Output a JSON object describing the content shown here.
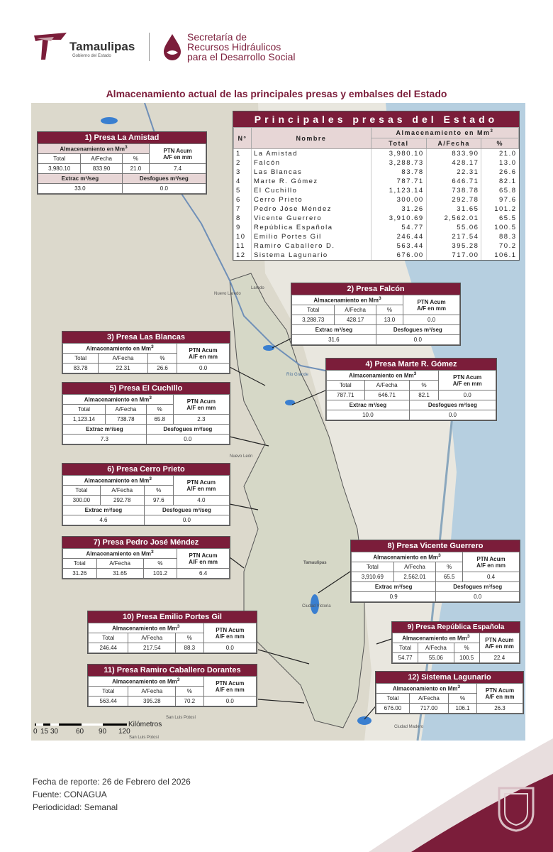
{
  "header": {
    "logo_name": "Tamaulipas",
    "logo_sub": "Gobierno del Estado",
    "agency_line1": "Secretaría de",
    "agency_line2": "Recursos Hidráulicos",
    "agency_line3": "para el Desarrollo Social"
  },
  "title": "Almacenamiento actual de las principales presas y embalses del Estado",
  "main_table": {
    "heading": "Principales presas del Estado",
    "col_no": "N°",
    "col_name": "Nombre",
    "col_storage": "Almacenamiento en Mm",
    "col_storage_sup": "3",
    "col_total": "Total",
    "col_date": "A/Fecha",
    "col_pct": "%",
    "rows": [
      {
        "n": "1",
        "name": "La Amistad",
        "total": "3,980.10",
        "fecha": "833.90",
        "pct": "21.0"
      },
      {
        "n": "2",
        "name": "Falcón",
        "total": "3,288.73",
        "fecha": "428.17",
        "pct": "13.0"
      },
      {
        "n": "3",
        "name": "Las Blancas",
        "total": "83.78",
        "fecha": "22.31",
        "pct": "26.6"
      },
      {
        "n": "4",
        "name": "Marte R. Gómez",
        "total": "787.71",
        "fecha": "646.71",
        "pct": "82.1"
      },
      {
        "n": "5",
        "name": "El Cuchillo",
        "total": "1,123.14",
        "fecha": "738.78",
        "pct": "65.8"
      },
      {
        "n": "6",
        "name": "Cerro Prieto",
        "total": "300.00",
        "fecha": "292.78",
        "pct": "97.6"
      },
      {
        "n": "7",
        "name": "Pedro Jóse Méndez",
        "total": "31.26",
        "fecha": "31.65",
        "pct": "101.2"
      },
      {
        "n": "8",
        "name": "Vicente Guerrero",
        "total": "3,910.69",
        "fecha": "2,562.01",
        "pct": "65.5"
      },
      {
        "n": "9",
        "name": "República Española",
        "total": "54.77",
        "fecha": "55.06",
        "pct": "100.5"
      },
      {
        "n": "10",
        "name": "Emilio Portes Gil",
        "total": "246.44",
        "fecha": "217.54",
        "pct": "88.3"
      },
      {
        "n": "11",
        "name": "Ramiro Caballero D.",
        "total": "563.44",
        "fecha": "395.28",
        "pct": "70.2"
      },
      {
        "n": "12",
        "name": "Sistema Lagunario",
        "total": "676.00",
        "fecha": "717.00",
        "pct": "106.1"
      }
    ]
  },
  "labels": {
    "storage": "Almacenamiento en Mm",
    "sup": "3",
    "ptn": "PTN Acum",
    "ptn2": "A/F en mm",
    "total": "Total",
    "fecha": "A/Fecha",
    "pct": "%",
    "extrac": "Extrac m³/seg",
    "desfogues": "Desfogues m³/seg"
  },
  "dams": {
    "amistad": {
      "title": "1) Presa La Amistad",
      "total": "3,980.10",
      "fecha": "833.90",
      "pct": "21.0",
      "ptn": "7.4",
      "extrac": "33.0",
      "desf": "0.0"
    },
    "falcon": {
      "title": "2) Presa Falcón",
      "total": "3,288.73",
      "fecha": "428.17",
      "pct": "13.0",
      "ptn": "0.0",
      "extrac": "31.6",
      "desf": "0.0"
    },
    "blancas": {
      "title": "3) Presa Las Blancas",
      "total": "83.78",
      "fecha": "22.31",
      "pct": "26.6",
      "ptn": "0.0"
    },
    "marte": {
      "title": "4) Presa Marte R. Gómez",
      "total": "787.71",
      "fecha": "646.71",
      "pct": "82.1",
      "ptn": "0.0",
      "extrac": "10.0",
      "desf": "0.0"
    },
    "cuchillo": {
      "title": "5) Presa El Cuchillo",
      "total": "1,123.14",
      "fecha": "738.78",
      "pct": "65.8",
      "ptn": "2.3",
      "extrac": "7.3",
      "desf": "0.0"
    },
    "cerro": {
      "title": "6) Presa Cerro Prieto",
      "total": "300.00",
      "fecha": "292.78",
      "pct": "97.6",
      "ptn": "4.0",
      "extrac": "4.6",
      "desf": "0.0"
    },
    "pedro": {
      "title": "7) Presa Pedro José Méndez",
      "total": "31.26",
      "fecha": "31.65",
      "pct": "101.2",
      "ptn": "6.4"
    },
    "vicente": {
      "title": "8) Presa Vicente Guerrero",
      "total": "3,910.69",
      "fecha": "2,562.01",
      "pct": "65.5",
      "ptn": "0.4",
      "extrac": "0.9",
      "desf": "0.0"
    },
    "republica": {
      "title": "9) Presa República Española",
      "total": "54.77",
      "fecha": "55.06",
      "pct": "100.5",
      "ptn": "22.4"
    },
    "emilio": {
      "title": "10) Presa Emilio Portes Gil",
      "total": "246.44",
      "fecha": "217.54",
      "pct": "88.3",
      "ptn": "0.0"
    },
    "ramiro": {
      "title": "11) Presa Ramiro Caballero Dorantes",
      "total": "563.44",
      "fecha": "395.28",
      "pct": "70.2",
      "ptn": "0.0"
    },
    "lagunario": {
      "title": "12) Sistema Lagunario",
      "total": "676.00",
      "fecha": "717.00",
      "pct": "106.1",
      "ptn": "26.3"
    }
  },
  "map_labels": {
    "nuevo_laredo": "Nuevo Laredo",
    "laredo": "Laredo",
    "rio_grande": "Río Grande",
    "nuevo_leon": "Nuevo León",
    "tamaulipas": "Tamaulipas",
    "ciudad_victoria": "Ciudad Victoria",
    "san_luis_1": "San Luis Potosí",
    "san_luis_2": "San Luis Potosí",
    "ciudad_madero": "Ciudad Madero"
  },
  "scale": {
    "ticks": [
      "0",
      "15",
      "30",
      "60",
      "90",
      "120"
    ],
    "unit": "Kilómetros"
  },
  "footer": {
    "fecha": "Fecha de reporte:  26 de Febrero del 2026",
    "fuente": "Fuente: CONAGUA",
    "periodicidad": "Periodicidad: Semanal"
  },
  "colors": {
    "accent": "#7b1d3a",
    "accent_light": "#e7d6d6",
    "water": "#b6cfe0",
    "land": "#e9e7df"
  },
  "icons": {
    "logo": "tamaulipas-logo-icon",
    "agency": "water-drop-icon",
    "seal": "state-seal-icon"
  }
}
